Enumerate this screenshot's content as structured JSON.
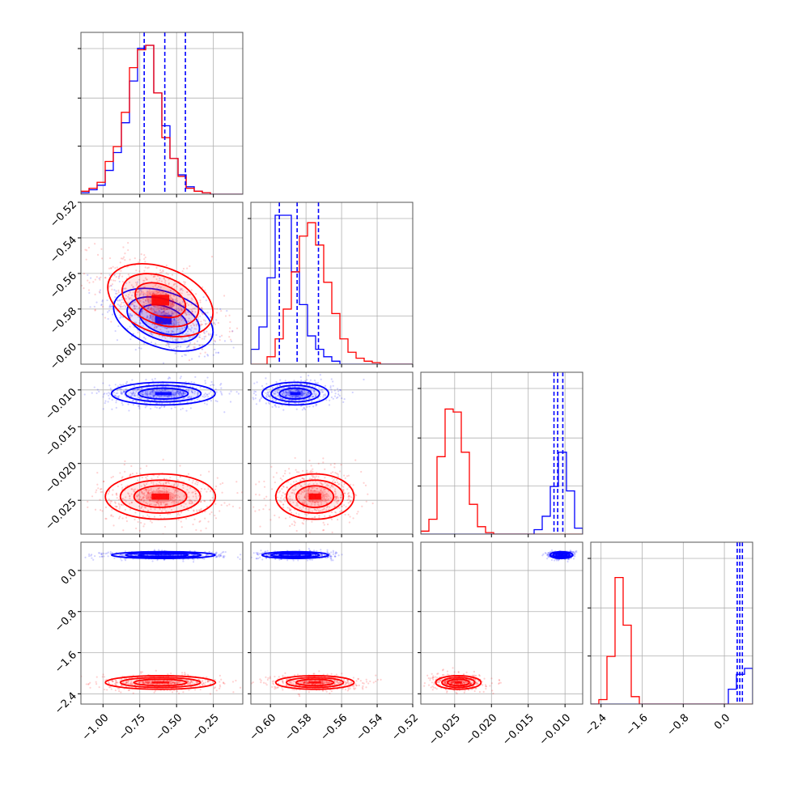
{
  "chart_data": {
    "type": "corner",
    "colors": {
      "series_a": "#0000ff",
      "series_b": "#ff0000"
    },
    "grid": true,
    "parameters": [
      {
        "range": [
          -1.15,
          -0.05
        ],
        "ticks": [
          -1.0,
          -0.75,
          -0.5,
          -0.25
        ],
        "tick_labels": [
          "−1.00",
          "−0.75",
          "−0.50",
          "−0.25"
        ]
      },
      {
        "range": [
          -0.611,
          -0.52
        ],
        "ticks": [
          -0.6,
          -0.58,
          -0.56,
          -0.54,
          -0.52
        ],
        "tick_labels": [
          "−0.60",
          "−0.58",
          "−0.56",
          "−0.54",
          "−0.52"
        ]
      },
      {
        "range": [
          -0.0296,
          -0.0076
        ],
        "ticks": [
          -0.025,
          -0.02,
          -0.015,
          -0.01
        ],
        "tick_labels": [
          "−0.025",
          "−0.020",
          "−0.015",
          "−0.010"
        ]
      },
      {
        "range": [
          -2.6,
          0.55
        ],
        "ticks": [
          -2.4,
          -1.6,
          -0.8,
          0.0
        ],
        "tick_labels": [
          "−2.4",
          "−1.6",
          "−0.8",
          "0.0"
        ]
      }
    ],
    "series": [
      {
        "color": "#0000ff",
        "means": [
          -0.59,
          -0.586,
          -0.0105,
          0.3
        ],
        "sds": [
          0.16,
          0.0085,
          0.0007,
          0.03
        ],
        "quantiles": [
          [
            -0.72,
            -0.58,
            -0.44
          ],
          [
            -0.595,
            -0.585,
            -0.573
          ],
          [
            -0.0115,
            -0.011,
            -0.0103
          ],
          [
            0.25,
            0.3,
            0.35
          ]
        ],
        "histograms": [
          [
            0.01,
            0.03,
            0.06,
            0.16,
            0.28,
            0.48,
            0.76,
            0.98,
            1.0,
            0.68,
            0.46,
            0.24,
            0.13,
            0.05,
            0.02,
            0.01,
            0.0,
            0.0,
            0.0,
            0.0
          ],
          [
            0.1,
            0.25,
            0.58,
            1.0,
            1.0,
            0.62,
            0.4,
            0.19,
            0.1,
            0.05,
            0.02,
            0.0,
            0.0,
            0.0,
            0.0,
            0.0,
            0.0,
            0.0,
            0.0,
            0.0
          ],
          [
            0.0,
            0.0,
            0.0,
            0.0,
            0.0,
            0.0,
            0.0,
            0.0,
            0.0,
            0.0,
            0.0,
            0.0,
            0.0,
            0.0,
            0.03,
            0.12,
            0.32,
            0.55,
            0.29,
            0.04
          ],
          [
            0.0,
            0.0,
            0.0,
            0.0,
            0.0,
            0.0,
            0.0,
            0.0,
            0.0,
            0.0,
            0.0,
            0.0,
            0.0,
            0.0,
            0.0,
            0.0,
            0.0,
            0.1,
            0.2,
            0.24
          ]
        ]
      },
      {
        "color": "#ff0000",
        "means": [
          -0.61,
          -0.575,
          -0.0245,
          -2.18
        ],
        "sds": [
          0.17,
          0.01,
          0.0014,
          0.06
        ],
        "quantiles": [],
        "histograms": [
          [
            0.02,
            0.04,
            0.08,
            0.22,
            0.32,
            0.55,
            0.85,
            0.97,
            1.0,
            0.68,
            0.38,
            0.24,
            0.12,
            0.04,
            0.02,
            0.01,
            0.0,
            0.0,
            0.0,
            0.0
          ],
          [
            0.0,
            0.0,
            0.05,
            0.17,
            0.37,
            0.62,
            0.86,
            0.95,
            0.8,
            0.55,
            0.34,
            0.17,
            0.08,
            0.04,
            0.02,
            0.01,
            0.0,
            0.0,
            0.0,
            0.0
          ],
          [
            0.02,
            0.1,
            0.52,
            0.84,
            0.82,
            0.55,
            0.2,
            0.05,
            0.01,
            0.0,
            0.0,
            0.0,
            0.0,
            0.0,
            0.0,
            0.0,
            0.0,
            0.0,
            0.0,
            0.0
          ],
          [
            0.0,
            0.03,
            0.32,
            0.85,
            0.53,
            0.05,
            0.0,
            0.0,
            0.0,
            0.0,
            0.0,
            0.0,
            0.0,
            0.0,
            0.0,
            0.0,
            0.0,
            0.0,
            0.0,
            0.0
          ]
        ]
      }
    ]
  }
}
